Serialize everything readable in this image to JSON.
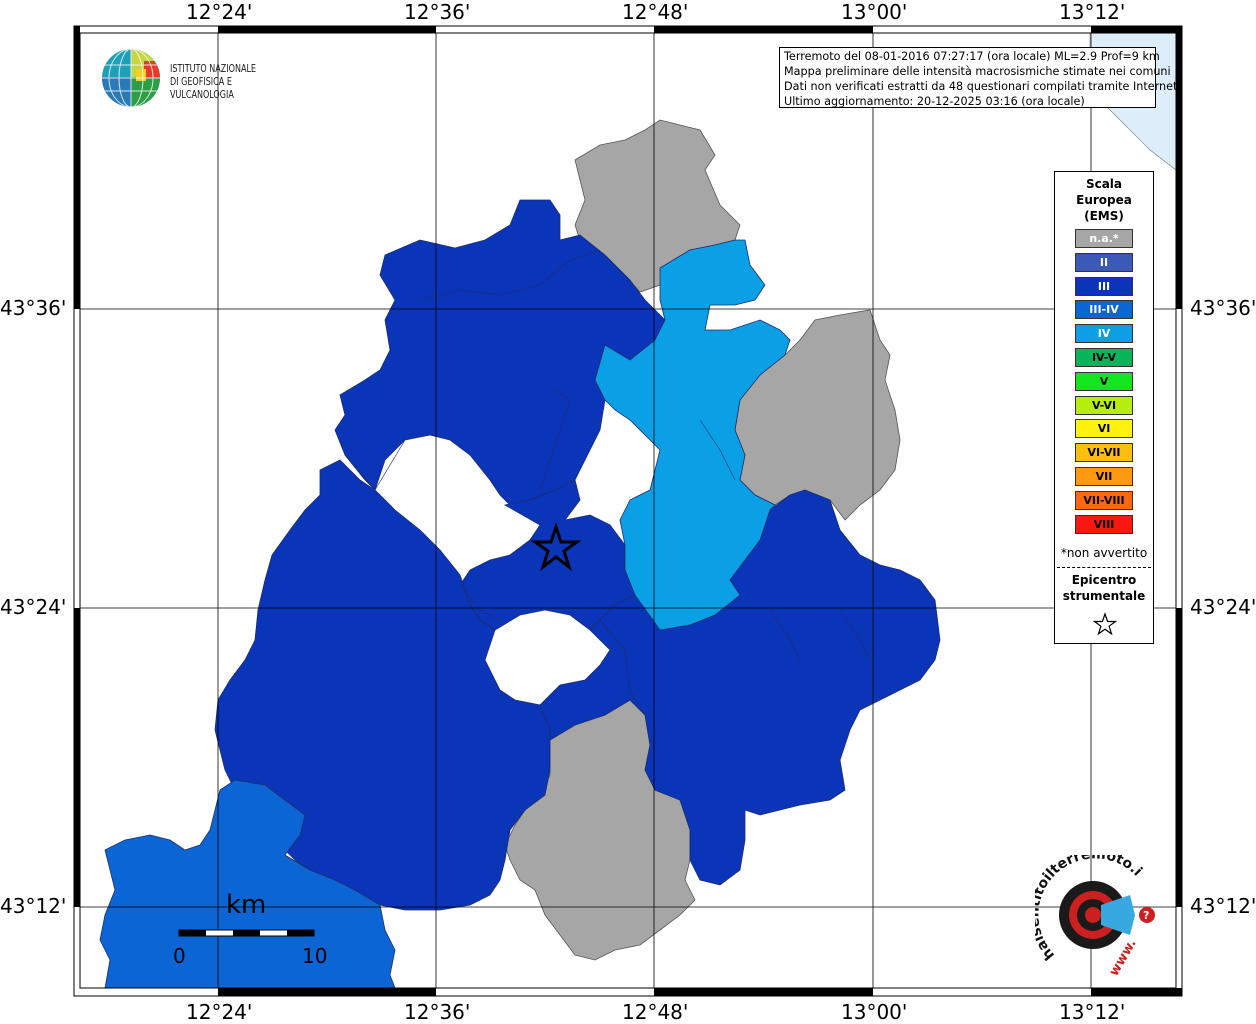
{
  "info_box": {
    "line1": "Terremoto del 08-01-2016 07:27:17 (ora locale) ML=2.9 Prof=9 km",
    "line2": "Mappa preliminare delle intensità macrosismiche stimate nei comuni",
    "line3": "Dati non verificati estratti da 48 questionari compilati tramite Internet.",
    "line4": "Ultimo aggiornamento: 20-12-2025 03:16 (ora locale)"
  },
  "ingv_logo": {
    "line1": "ISTITUTO NAZIONALE",
    "line2": "DI GEOFISICA E VULCANOLOGIA"
  },
  "axis_labels": {
    "top": [
      "12°24'",
      "12°36'",
      "12°48'",
      "13°00'",
      "13°12'"
    ],
    "bottom": [
      "12°24'",
      "12°36'",
      "12°48'",
      "13°00'",
      "13°12'"
    ],
    "left": [
      "43°36'",
      "43°24'",
      "43°12'"
    ],
    "right": [
      "43°36'",
      "43°24'",
      "43°12'"
    ]
  },
  "legend": {
    "title_line1": "Scala",
    "title_line2": "Europea",
    "title_line3": "(EMS)",
    "items": [
      {
        "label": "n.a.*",
        "color": "#a6a6a6",
        "text_color": "#ffffff"
      },
      {
        "label": "II",
        "color": "#3a5ab5",
        "text_color": "#ffffff"
      },
      {
        "label": "III",
        "color": "#0a35b8",
        "text_color": "#ffffff"
      },
      {
        "label": "III-IV",
        "color": "#0c65d4",
        "text_color": "#ffffff"
      },
      {
        "label": "IV",
        "color": "#0ba0e6",
        "text_color": "#ffffff"
      },
      {
        "label": "IV-V",
        "color": "#09b55a",
        "text_color": "#000000"
      },
      {
        "label": "V",
        "color": "#11e61e",
        "text_color": "#000000"
      },
      {
        "label": "V-VI",
        "color": "#b6ee0e",
        "text_color": "#000000"
      },
      {
        "label": "VI",
        "color": "#fff20d",
        "text_color": "#000000"
      },
      {
        "label": "VI-VII",
        "color": "#fcbf0f",
        "text_color": "#000000"
      },
      {
        "label": "VII",
        "color": "#ff9a10",
        "text_color": "#000000"
      },
      {
        "label": "VII-VIII",
        "color": "#ff6710",
        "text_color": "#000000"
      },
      {
        "label": "VIII",
        "color": "#fa1710",
        "text_color": "#000000"
      }
    ],
    "note": "*non avvertito",
    "epicenter_line1": "Epicentro",
    "epicenter_line2": "strumentale"
  },
  "scale_bar": {
    "unit": "km",
    "start": "0",
    "end": "10"
  },
  "hsit_logo": {
    "text": "haisentitoilterremoto.it",
    "www": "www."
  },
  "colors": {
    "na": "#a6a6a6",
    "iii": "#0a35b8",
    "iii_iv": "#0c65d4",
    "iv": "#0ba0e6",
    "sea": "#ddeefa"
  }
}
